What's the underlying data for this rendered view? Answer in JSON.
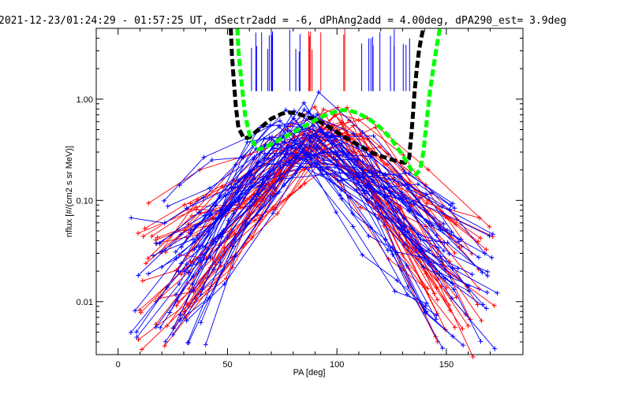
{
  "chart_data": {
    "type": "line",
    "title": "2021-12-23/01:24:29 - 01:57:25 UT, dSectr2add = -6, dPhAng2add = 4.00deg, dPA290_est=   3.9deg",
    "xlabel": "PA [deg]",
    "ylabel": "nflux [#/(cm2 s sr MeV)]",
    "xlim": [
      -10,
      185
    ],
    "ylim": [
      0.003,
      5.0
    ],
    "yscale": "log",
    "x_ticks": [
      {
        "value": 0,
        "label": "0"
      },
      {
        "value": 50,
        "label": "50"
      },
      {
        "value": 100,
        "label": "100"
      },
      {
        "value": 150,
        "label": "150"
      }
    ],
    "y_ticks": [
      {
        "value": 0.01,
        "label": "0.01"
      },
      {
        "value": 0.1,
        "label": "0.10"
      },
      {
        "value": 1.0,
        "label": "1.00"
      }
    ],
    "grid": false,
    "legend": "none",
    "series": [
      {
        "color": "#000000",
        "style": "thick-dashed",
        "x": [
          51.5,
          52,
          52.8,
          53.8,
          55,
          57.5,
          60,
          65,
          70,
          75,
          78,
          82,
          87,
          92,
          97,
          102,
          107,
          112,
          117,
          122,
          127,
          131,
          133,
          134.5,
          135.5,
          136.5,
          137.5,
          138.5,
          139.5
        ],
        "y": [
          5.0,
          2.8,
          1.6,
          0.85,
          0.52,
          0.41,
          0.42,
          0.52,
          0.64,
          0.72,
          0.74,
          0.72,
          0.66,
          0.6,
          0.52,
          0.44,
          0.38,
          0.33,
          0.29,
          0.265,
          0.245,
          0.235,
          0.26,
          0.6,
          1.2,
          2.0,
          3.0,
          4.0,
          5.0
        ]
      },
      {
        "color": "#00ff00",
        "style": "thick-dashed",
        "x": [
          54.5,
          55,
          56,
          57,
          58,
          60,
          62,
          64,
          67,
          70,
          75,
          80,
          85,
          90,
          95,
          100,
          103,
          106,
          110,
          115,
          120,
          125,
          130,
          134,
          136,
          138,
          139.5,
          141,
          142.5,
          144,
          145.5,
          147
        ],
        "y": [
          5.0,
          3.0,
          1.8,
          1.1,
          0.7,
          0.45,
          0.36,
          0.32,
          0.33,
          0.36,
          0.41,
          0.47,
          0.54,
          0.62,
          0.7,
          0.76,
          0.78,
          0.77,
          0.72,
          0.63,
          0.52,
          0.4,
          0.28,
          0.2,
          0.18,
          0.2,
          0.3,
          0.6,
          1.2,
          2.0,
          3.2,
          5.0
        ]
      }
    ]
  }
}
